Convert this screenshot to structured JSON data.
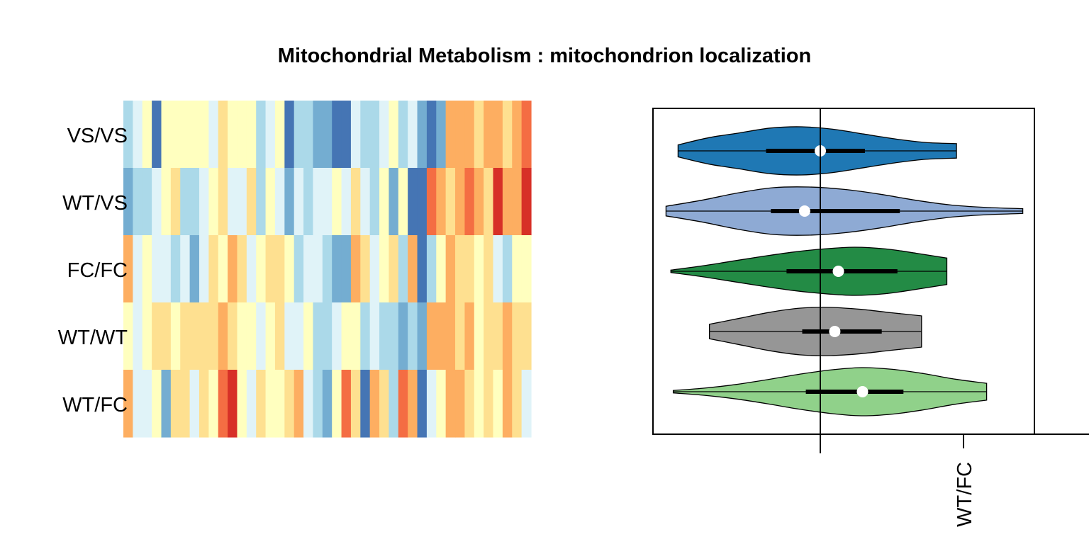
{
  "chart_data": [
    {
      "type": "heatmap",
      "title": "Mitochondrial Metabolism : mitochondrion localization",
      "rows": [
        "VS/VS",
        "WT/VS",
        "FC/FC",
        "WT/WT",
        "WT/FC"
      ],
      "n_columns": 43,
      "palette": [
        "#D73027",
        "#F46D43",
        "#FDAE61",
        "#FEE090",
        "#FFFFBF",
        "#E0F3F8",
        "#ABD9E9",
        "#74ADD1",
        "#4575B4"
      ],
      "cell_levels": [
        [
          6,
          5,
          4,
          8,
          4,
          4,
          4,
          4,
          4,
          5,
          3,
          4,
          4,
          4,
          6,
          5,
          4,
          8,
          6,
          6,
          7,
          7,
          8,
          8,
          5,
          6,
          6,
          5,
          4,
          6,
          5,
          7,
          8,
          7,
          2,
          2,
          2,
          3,
          2,
          2,
          3,
          2,
          1
        ],
        [
          7,
          6,
          6,
          5,
          4,
          3,
          6,
          6,
          5,
          4,
          3,
          5,
          5,
          3,
          6,
          4,
          5,
          7,
          5,
          6,
          5,
          5,
          4,
          5,
          3,
          5,
          6,
          4,
          7,
          4,
          8,
          8,
          1,
          2,
          3,
          2,
          1,
          2,
          3,
          0,
          2,
          2,
          0
        ],
        [
          2,
          5,
          4,
          5,
          5,
          6,
          5,
          7,
          5,
          3,
          4,
          2,
          3,
          5,
          4,
          3,
          3,
          4,
          6,
          5,
          5,
          6,
          7,
          7,
          2,
          3,
          5,
          4,
          3,
          6,
          2,
          8,
          6,
          4,
          2,
          3,
          3,
          4,
          3,
          5,
          6,
          4,
          4
        ],
        [
          4,
          5,
          4,
          3,
          3,
          4,
          3,
          3,
          3,
          3,
          2,
          3,
          4,
          4,
          5,
          4,
          3,
          5,
          5,
          4,
          6,
          6,
          5,
          4,
          4,
          6,
          5,
          6,
          6,
          7,
          6,
          7,
          2,
          2,
          2,
          3,
          2,
          4,
          3,
          3,
          2,
          3,
          3
        ],
        [
          2,
          5,
          5,
          4,
          7,
          3,
          3,
          5,
          3,
          4,
          1,
          0,
          4,
          5,
          3,
          4,
          4,
          3,
          2,
          5,
          6,
          7,
          4,
          1,
          3,
          8,
          2,
          3,
          6,
          1,
          2,
          8,
          5,
          4,
          2,
          2,
          3,
          4,
          3,
          4,
          2,
          3,
          5
        ]
      ]
    },
    {
      "type": "violin",
      "categories": [
        "VS/VS",
        "WT/VS",
        "FC/FC",
        "WT/WT",
        "WT/FC"
      ],
      "x_tick_labels": [
        "WT/FC"
      ],
      "reference_line": 0,
      "xlim": [
        -1.2,
        2.0
      ],
      "colors": [
        "#1F78B4",
        "#8EAAD4",
        "#238B45",
        "#969696",
        "#90D18A"
      ],
      "series": [
        {
          "median": 0.0,
          "mean": 0.0,
          "q1": -0.45,
          "q3": 0.37,
          "min": -1.18,
          "max": 1.13,
          "profile": [
            0.25,
            0.55,
            0.75,
            0.95,
            1.0,
            0.9,
            0.7,
            0.5,
            0.35,
            0.3
          ]
        },
        {
          "median": -0.13,
          "mean": -0.13,
          "q1": -0.41,
          "q3": 0.66,
          "min": -1.28,
          "max": 1.68,
          "profile": [
            0.2,
            0.45,
            0.75,
            0.97,
            1.0,
            0.9,
            0.7,
            0.45,
            0.25,
            0.15,
            0.1
          ]
        },
        {
          "median": 0.15,
          "mean": 0.15,
          "q1": -0.28,
          "q3": 0.64,
          "min": -1.24,
          "max": 1.05,
          "profile": [
            0.05,
            0.22,
            0.42,
            0.62,
            0.8,
            0.93,
            1.0,
            0.93,
            0.75,
            0.55
          ]
        },
        {
          "median": 0.12,
          "mean": 0.12,
          "q1": -0.15,
          "q3": 0.51,
          "min": -0.92,
          "max": 0.84,
          "profile": [
            0.3,
            0.55,
            0.8,
            0.97,
            1.0,
            0.92,
            0.78,
            0.65
          ]
        },
        {
          "median": 0.35,
          "mean": 0.35,
          "q1": -0.12,
          "q3": 0.69,
          "min": -1.22,
          "max": 1.38,
          "profile": [
            0.05,
            0.15,
            0.3,
            0.5,
            0.72,
            0.9,
            1.0,
            0.93,
            0.75,
            0.52,
            0.35
          ]
        }
      ]
    }
  ]
}
